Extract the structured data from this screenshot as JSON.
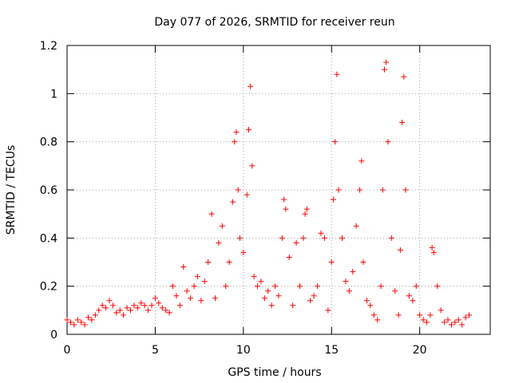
{
  "chart_data": {
    "type": "scatter",
    "title": "Day 077 of 2026, SRMTID for receiver reun",
    "xlabel": "GPS time / hours",
    "ylabel": "SRMTID / TECUs",
    "xlim": [
      0,
      24
    ],
    "ylim": [
      0,
      1.2
    ],
    "x_ticks": [
      "0",
      "5",
      "10",
      "15",
      "20"
    ],
    "x_tick_values": [
      0,
      5,
      10,
      15,
      20
    ],
    "y_ticks": [
      "0",
      "0.2",
      "0.4",
      "0.6",
      "0.8",
      "1",
      "1.2"
    ],
    "y_tick_values": [
      0,
      0.2,
      0.4,
      0.6,
      0.8,
      1.0,
      1.2
    ],
    "grid": true,
    "marker": "+",
    "color": "#ff0000",
    "series": [
      {
        "name": "SRMTID",
        "x": [
          0.0,
          0.2,
          0.4,
          0.6,
          0.8,
          1.0,
          1.2,
          1.4,
          1.6,
          1.8,
          2.0,
          2.2,
          2.4,
          2.6,
          2.8,
          3.0,
          3.2,
          3.4,
          3.6,
          3.8,
          4.0,
          4.2,
          4.4,
          4.6,
          4.8,
          5.0,
          5.2,
          5.4,
          5.6,
          5.8,
          6.0,
          6.2,
          6.4,
          6.6,
          6.8,
          7.0,
          7.2,
          7.4,
          7.6,
          7.8,
          8.0,
          8.2,
          8.4,
          8.6,
          8.8,
          9.0,
          9.2,
          9.4,
          9.5,
          9.6,
          9.7,
          9.8,
          10.0,
          10.2,
          10.3,
          10.4,
          10.5,
          10.6,
          10.8,
          11.0,
          11.2,
          11.4,
          11.6,
          11.8,
          12.0,
          12.2,
          12.3,
          12.4,
          12.6,
          12.8,
          13.0,
          13.2,
          13.4,
          13.5,
          13.6,
          13.8,
          14.0,
          14.2,
          14.4,
          14.6,
          14.8,
          15.0,
          15.1,
          15.2,
          15.3,
          15.4,
          15.6,
          15.8,
          16.0,
          16.2,
          16.4,
          16.6,
          16.7,
          16.8,
          17.0,
          17.2,
          17.4,
          17.6,
          17.8,
          17.9,
          18.0,
          18.1,
          18.2,
          18.4,
          18.6,
          18.8,
          18.9,
          19.0,
          19.1,
          19.2,
          19.4,
          19.6,
          19.8,
          20.0,
          20.2,
          20.4,
          20.6,
          20.7,
          20.8,
          21.0,
          21.2,
          21.4,
          21.6,
          21.8,
          22.0,
          22.2,
          22.4,
          22.6,
          22.8
        ],
        "y": [
          0.06,
          0.05,
          0.04,
          0.06,
          0.05,
          0.04,
          0.07,
          0.06,
          0.08,
          0.1,
          0.12,
          0.11,
          0.14,
          0.12,
          0.09,
          0.1,
          0.08,
          0.11,
          0.1,
          0.12,
          0.11,
          0.13,
          0.12,
          0.1,
          0.12,
          0.15,
          0.13,
          0.11,
          0.1,
          0.09,
          0.2,
          0.16,
          0.12,
          0.28,
          0.18,
          0.15,
          0.2,
          0.24,
          0.14,
          0.22,
          0.3,
          0.5,
          0.15,
          0.38,
          0.45,
          0.2,
          0.3,
          0.55,
          0.8,
          0.84,
          0.6,
          0.4,
          0.34,
          0.58,
          0.85,
          1.03,
          0.7,
          0.24,
          0.2,
          0.22,
          0.15,
          0.18,
          0.12,
          0.2,
          0.16,
          0.4,
          0.56,
          0.52,
          0.32,
          0.12,
          0.38,
          0.2,
          0.4,
          0.5,
          0.52,
          0.14,
          0.16,
          0.2,
          0.42,
          0.4,
          0.1,
          0.3,
          0.56,
          0.8,
          1.08,
          0.6,
          0.4,
          0.22,
          0.18,
          0.26,
          0.45,
          0.6,
          0.72,
          0.3,
          0.14,
          0.12,
          0.08,
          0.06,
          0.2,
          0.6,
          1.1,
          1.13,
          0.8,
          0.4,
          0.18,
          0.08,
          0.35,
          0.88,
          1.07,
          0.6,
          0.16,
          0.14,
          0.2,
          0.08,
          0.06,
          0.05,
          0.08,
          0.36,
          0.34,
          0.2,
          0.1,
          0.05,
          0.06,
          0.04,
          0.05,
          0.06,
          0.04,
          0.07,
          0.08
        ]
      }
    ]
  }
}
